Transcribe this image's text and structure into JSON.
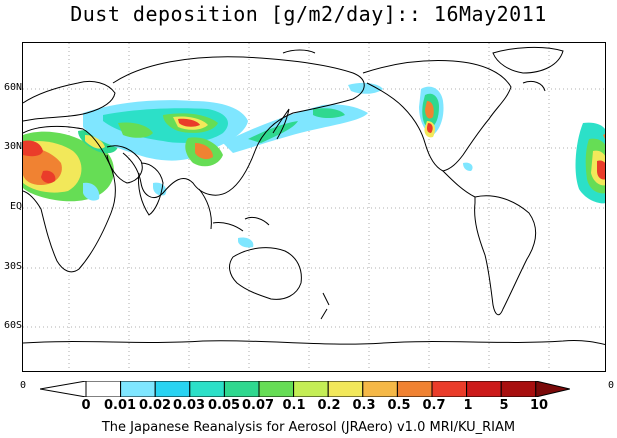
{
  "title": "Dust deposition [g/m2/day]:: 16May2011",
  "lat_labels": [
    "60N",
    "30N",
    "EQ",
    "30S",
    "60S"
  ],
  "colorbar": {
    "corner_left": "0",
    "corner_right": "0",
    "tick_labels": [
      "0",
      "0.01",
      "0.02",
      "0.03",
      "0.05",
      "0.07",
      "0.1",
      "0.2",
      "0.3",
      "0.5",
      "0.7",
      "1",
      "5",
      "10"
    ],
    "colors": [
      "#ffffff",
      "#ffffff",
      "#7fe6ff",
      "#29d3f2",
      "#2ce0c8",
      "#2fd88f",
      "#66dd55",
      "#c4ee55",
      "#f2e85a",
      "#f5b847",
      "#f08232",
      "#ea3c2a",
      "#cc1a1a",
      "#a80f0f",
      "#7a0a0a"
    ]
  },
  "footer": "The Japanese Reanalysis for Aerosol (JRAero) v1.0 MRI/KU_RIAM"
}
